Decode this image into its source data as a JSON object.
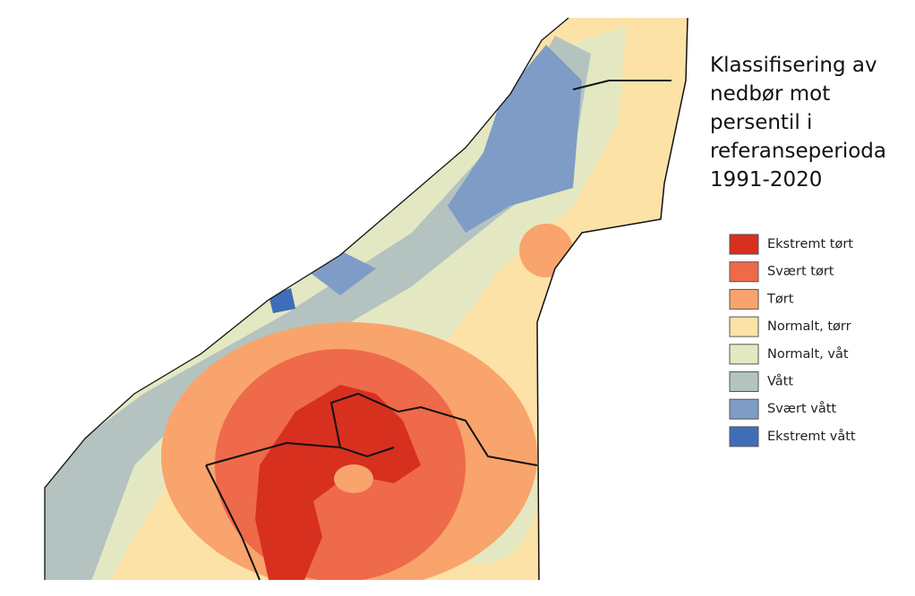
{
  "title_lines": [
    "Klassifisering av",
    "nedbør mot",
    "persentil i",
    "referanseperioda",
    "1991-2020"
  ],
  "legend": [
    {
      "label": "Ekstremt tørt",
      "color": "#d7301f"
    },
    {
      "label": "Svært tørt",
      "color": "#ee6a4a"
    },
    {
      "label": "Tørt",
      "color": "#f8a46c"
    },
    {
      "label": "Normalt, tørr",
      "color": "#fde2a8"
    },
    {
      "label": "Normalt, våt",
      "color": "#e4e8c2"
    },
    {
      "label": "Vått",
      "color": "#b4c3c0"
    },
    {
      "label": "Svært vått",
      "color": "#7e9cc6"
    },
    {
      "label": "Ekstremt vått",
      "color": "#3f6db8"
    }
  ]
}
